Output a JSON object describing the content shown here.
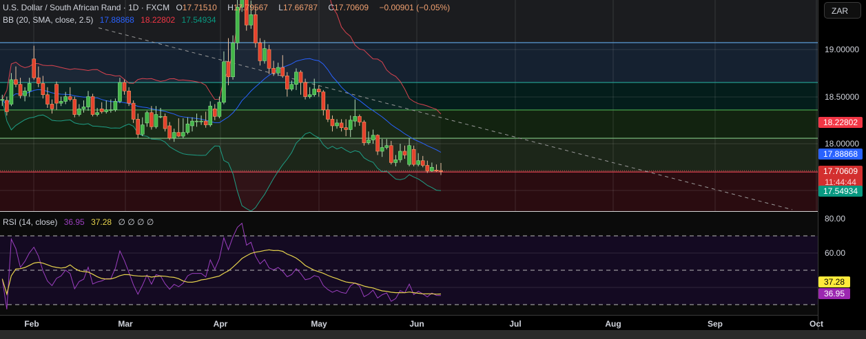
{
  "header": {
    "symbol_title": "U.S. Dollar / South African Rand · 1D · FXCM",
    "o_label": "O",
    "o_value": "17.71510",
    "h_label": "H",
    "h_value": "17.79567",
    "l_label": "L",
    "l_value": "17.66787",
    "c_label": "C",
    "c_value": "17.70609",
    "change": "−0.00901 (−0.05%)"
  },
  "bb_legend": {
    "label": "BB (20, SMA, close, 2.5)",
    "basis": "17.88868",
    "upper": "18.22802",
    "lower": "17.54934"
  },
  "rsi_legend": {
    "label": "RSI (14, close)",
    "rsi": "36.95",
    "ma": "37.28",
    "extras": "∅  ∅  ∅  ∅"
  },
  "price_axis": {
    "currency": "ZAR",
    "ticks": [
      "19.00000",
      "18.50000",
      "18.00000"
    ],
    "labels": {
      "upper": {
        "text": "18.22802",
        "value": 18.22802,
        "color": "#f23645"
      },
      "basis": {
        "text": "17.88868",
        "value": 17.88868,
        "color": "#2962ff"
      },
      "last": {
        "text": "17.70609",
        "countdown": "11:44:44",
        "value": 17.70609,
        "color": "#d32f2f"
      },
      "lower": {
        "text": "17.54934",
        "value": 17.54934,
        "color": "#089981"
      }
    }
  },
  "rsi_axis": {
    "ticks": [
      "80.00",
      "60.00"
    ],
    "labels": {
      "ma": {
        "text": "37.28",
        "color": "#ffeb3b"
      },
      "rsi": {
        "text": "36.95",
        "color": "#9c27b0"
      }
    }
  },
  "time_axis": [
    "Feb",
    "Mar",
    "Apr",
    "May",
    "Jun",
    "Jul",
    "Aug",
    "Sep",
    "Oct"
  ],
  "colors": {
    "up": "#43b649",
    "down": "#e5412d",
    "bb_basis": "#2962ff",
    "bb_upper": "#d9434f",
    "bb_lower": "#1e9f86",
    "rsi": "#9c3fc0",
    "rsi_ma": "#e8d44d"
  },
  "levels": [
    19.073,
    18.65,
    18.358,
    18.058,
    17.7
  ],
  "trendline": [
    [
      21.3,
      19.23
    ],
    [
      174.7,
      17.3
    ]
  ],
  "chart_data": {
    "type": "candlestick",
    "title": "U.S. Dollar / South African Rand · 1D · FXCM",
    "ylim": [
      17.3,
      19.53
    ],
    "rsi_ylim": [
      20,
      84
    ],
    "candles": [
      [
        18.46,
        18.52,
        18.4,
        18.47
      ],
      [
        18.46,
        18.5,
        18.3,
        18.34
      ],
      [
        18.42,
        18.75,
        18.4,
        18.68
      ],
      [
        18.68,
        18.82,
        18.6,
        18.63
      ],
      [
        18.63,
        18.7,
        18.48,
        18.51
      ],
      [
        18.51,
        18.6,
        18.45,
        18.56
      ],
      [
        18.56,
        18.7,
        18.5,
        18.64
      ],
      [
        18.9,
        19.04,
        18.68,
        18.7
      ],
      [
        18.7,
        18.82,
        18.6,
        18.64
      ],
      [
        18.64,
        18.72,
        18.48,
        18.52
      ],
      [
        18.52,
        18.6,
        18.38,
        18.42
      ],
      [
        18.42,
        18.47,
        18.32,
        18.37
      ],
      [
        18.63,
        18.66,
        18.36,
        18.43
      ],
      [
        18.43,
        18.5,
        18.4,
        18.45
      ],
      [
        18.45,
        18.55,
        18.42,
        18.5
      ],
      [
        18.5,
        18.6,
        18.45,
        18.47
      ],
      [
        18.47,
        18.5,
        18.28,
        18.31
      ],
      [
        18.31,
        18.42,
        18.29,
        18.37
      ],
      [
        18.37,
        18.46,
        18.33,
        18.39
      ],
      [
        18.39,
        18.56,
        18.35,
        18.5
      ],
      [
        18.5,
        18.53,
        18.29,
        18.31
      ],
      [
        18.31,
        18.38,
        18.29,
        18.33
      ],
      [
        18.37,
        18.44,
        18.32,
        18.34
      ],
      [
        18.34,
        18.46,
        18.32,
        18.36
      ],
      [
        18.36,
        18.47,
        18.33,
        18.36
      ],
      [
        18.36,
        18.48,
        18.34,
        18.45
      ],
      [
        18.45,
        18.7,
        18.43,
        18.65
      ],
      [
        18.65,
        18.68,
        18.52,
        18.56
      ],
      [
        18.56,
        18.6,
        18.4,
        18.43
      ],
      [
        18.43,
        18.46,
        18.22,
        18.26
      ],
      [
        18.26,
        18.32,
        18.06,
        18.1
      ],
      [
        18.1,
        18.28,
        18.08,
        18.2
      ],
      [
        18.22,
        18.35,
        18.18,
        18.33
      ],
      [
        18.33,
        18.4,
        18.15,
        18.18
      ],
      [
        18.18,
        18.4,
        18.16,
        18.31
      ],
      [
        18.29,
        18.38,
        18.27,
        18.29
      ],
      [
        18.29,
        18.32,
        18.13,
        18.16
      ],
      [
        18.19,
        18.23,
        18.04,
        18.06
      ],
      [
        18.06,
        18.16,
        18.02,
        18.12
      ],
      [
        18.12,
        18.27,
        18.07,
        18.08
      ],
      [
        18.08,
        18.27,
        18.06,
        18.12
      ],
      [
        18.12,
        18.28,
        18.1,
        18.21
      ],
      [
        18.19,
        18.28,
        18.13,
        18.24
      ],
      [
        18.24,
        18.32,
        18.18,
        18.24
      ],
      [
        18.24,
        18.3,
        18.2,
        18.24
      ],
      [
        18.24,
        18.34,
        18.17,
        18.2
      ],
      [
        18.2,
        18.45,
        18.18,
        18.4
      ],
      [
        18.37,
        18.42,
        18.25,
        18.29
      ],
      [
        18.29,
        18.5,
        18.27,
        18.44
      ],
      [
        18.44,
        18.98,
        18.42,
        18.87
      ],
      [
        18.87,
        19.12,
        18.62,
        18.71
      ],
      [
        18.71,
        19.15,
        18.68,
        19.07
      ],
      [
        19.07,
        19.6,
        19.0,
        19.45
      ],
      [
        19.45,
        19.75,
        19.4,
        19.65
      ],
      [
        19.65,
        19.7,
        19.2,
        19.26
      ],
      [
        19.26,
        19.52,
        19.22,
        19.37
      ],
      [
        19.37,
        19.45,
        19.02,
        19.07
      ],
      [
        19.07,
        19.12,
        18.83,
        18.88
      ],
      [
        18.88,
        19.1,
        18.85,
        19.01
      ],
      [
        19.0,
        19.05,
        18.74,
        18.8
      ],
      [
        18.8,
        18.88,
        18.72,
        18.75
      ],
      [
        18.75,
        18.86,
        18.72,
        18.81
      ],
      [
        18.81,
        18.94,
        18.7,
        18.72
      ],
      [
        18.72,
        18.76,
        18.5,
        18.58
      ],
      [
        18.58,
        18.67,
        18.56,
        18.63
      ],
      [
        18.63,
        18.8,
        18.57,
        18.76
      ],
      [
        18.76,
        18.78,
        18.52,
        18.65
      ],
      [
        18.65,
        18.69,
        18.47,
        18.5
      ],
      [
        18.5,
        18.6,
        18.48,
        18.52
      ],
      [
        18.52,
        18.69,
        18.5,
        18.58
      ],
      [
        18.58,
        18.62,
        18.5,
        18.55
      ],
      [
        18.55,
        18.57,
        18.3,
        18.36
      ],
      [
        18.36,
        18.42,
        18.23,
        18.26
      ],
      [
        18.26,
        18.3,
        18.13,
        18.19
      ],
      [
        18.19,
        18.26,
        18.16,
        18.22
      ],
      [
        18.22,
        18.26,
        18.13,
        18.17
      ],
      [
        18.17,
        18.26,
        18.08,
        18.15
      ],
      [
        18.15,
        18.3,
        18.07,
        18.25
      ],
      [
        18.24,
        18.47,
        18.18,
        18.29
      ],
      [
        18.29,
        18.31,
        18.19,
        18.23
      ],
      [
        18.23,
        18.25,
        17.98,
        18.01
      ],
      [
        18.01,
        18.13,
        17.99,
        18.04
      ],
      [
        18.04,
        18.15,
        18.0,
        18.09
      ],
      [
        18.09,
        18.1,
        17.88,
        17.92
      ],
      [
        17.92,
        18.05,
        17.86,
        17.96
      ],
      [
        17.96,
        18.05,
        17.94,
        17.98
      ],
      [
        17.98,
        18.03,
        17.78,
        17.8
      ],
      [
        17.8,
        17.88,
        17.76,
        17.83
      ],
      [
        17.83,
        18.0,
        17.8,
        17.92
      ],
      [
        17.92,
        17.98,
        17.84,
        17.88
      ],
      [
        17.78,
        18.06,
        17.76,
        17.98
      ],
      [
        17.94,
        17.98,
        17.76,
        17.78
      ],
      [
        17.78,
        17.9,
        17.76,
        17.82
      ],
      [
        17.82,
        17.87,
        17.75,
        17.77
      ],
      [
        17.77,
        17.82,
        17.69,
        17.71
      ],
      [
        17.71,
        17.8,
        17.7,
        17.75
      ],
      [
        17.72,
        17.78,
        17.7,
        17.71
      ],
      [
        17.7151,
        17.79567,
        17.66787,
        17.70609
      ]
    ],
    "indicators": [
      "BB (20, SMA, close, 2.5)",
      "RSI (14, close)",
      "RSI MA (14)"
    ]
  }
}
